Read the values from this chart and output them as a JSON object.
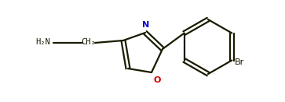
{
  "bg_color": "#ffffff",
  "line_color": "#1a1a00",
  "line_width": 1.6,
  "figsize": [
    3.63,
    1.31
  ],
  "dpi": 100,
  "label_NH2": "H₂N",
  "label_CH2": "CH₂",
  "label_N": "N",
  "label_O": "O",
  "label_Br": "Br",
  "font_size": 7.5,
  "xlim": [
    0,
    363
  ],
  "ylim": [
    0,
    131
  ]
}
